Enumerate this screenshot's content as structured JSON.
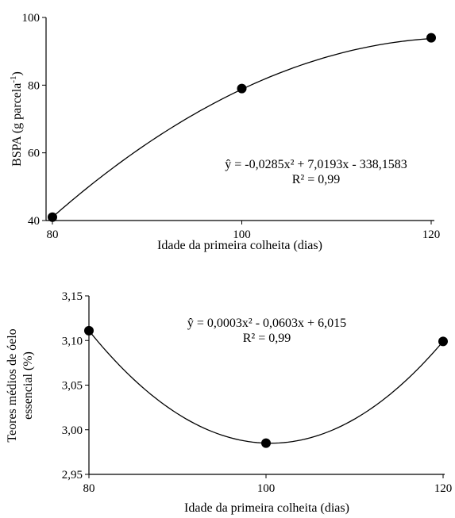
{
  "chart_data": [
    {
      "type": "scatter",
      "xlabel": "Idade da primeira colheita (dias)",
      "ylabel": "BSPA (g parcela-1)",
      "ylabel_base": "BSPA (g parcela",
      "ylabel_sup": "-1",
      "ylabel_close": ")",
      "xlim": [
        80,
        120
      ],
      "ylim": [
        40,
        100
      ],
      "xticks": [
        "80",
        "100",
        "120"
      ],
      "yticks": [
        "40",
        "60",
        "80",
        "100"
      ],
      "grid": false,
      "points": [
        {
          "x": 80,
          "y": 41
        },
        {
          "x": 100,
          "y": 79
        },
        {
          "x": 120,
          "y": 94
        }
      ],
      "fit": {
        "a": -0.0285,
        "b": 7.0193,
        "c": -338.1583
      },
      "equation": "ŷ = -0,0285x² + 7,0193x - 338,1583",
      "r2": "R² = 0,99"
    },
    {
      "type": "scatter",
      "xlabel": "Idade da primeira colheita (dias)",
      "ylabel": "Teores médios de óelo essencial (%)",
      "ylabel_line1": "Teores médios de óelo",
      "ylabel_line2": "essencial (%)",
      "xlim": [
        80,
        120
      ],
      "ylim": [
        2.95,
        3.15
      ],
      "xticks": [
        "80",
        "100",
        "120"
      ],
      "yticks": [
        "2,95",
        "3,00",
        "3,05",
        "3,10",
        "3,15"
      ],
      "grid": false,
      "points": [
        {
          "x": 80,
          "y": 3.111
        },
        {
          "x": 100,
          "y": 2.985
        },
        {
          "x": 120,
          "y": 3.099
        }
      ],
      "fit": {
        "a": 0.0003,
        "b": -0.0603,
        "c": 6.015
      },
      "equation": "ŷ = 0,0003x² - 0,0603x + 6,015",
      "r2": "R² = 0,99"
    }
  ]
}
